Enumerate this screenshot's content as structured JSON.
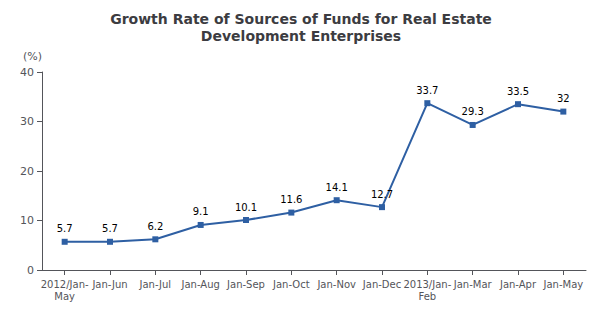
{
  "chart_data": {
    "type": "line",
    "title": "Growth Rate of Sources of Funds for Real Estate\nDevelopment Enterprises",
    "ylabel": "(%)",
    "categories": [
      "2012/Jan-\nMay",
      "Jan-Jun",
      "Jan-Jul",
      "Jan-Aug",
      "Jan-Sep",
      "Jan-Oct",
      "Jan-Nov",
      "Jan-Dec",
      "2013/Jan-\nFeb",
      "Jan-Mar",
      "Jan-Apr",
      "Jan-May"
    ],
    "values": [
      5.7,
      5.7,
      6.2,
      9.1,
      10.1,
      11.6,
      14.1,
      12.7,
      33.7,
      29.3,
      33.5,
      32.0
    ],
    "color": "#2E5FA3",
    "marker": "square",
    "data_labels": true,
    "ylim": [
      0,
      40
    ],
    "yticks": [
      0,
      10,
      20,
      30,
      40
    ],
    "grid": false
  }
}
